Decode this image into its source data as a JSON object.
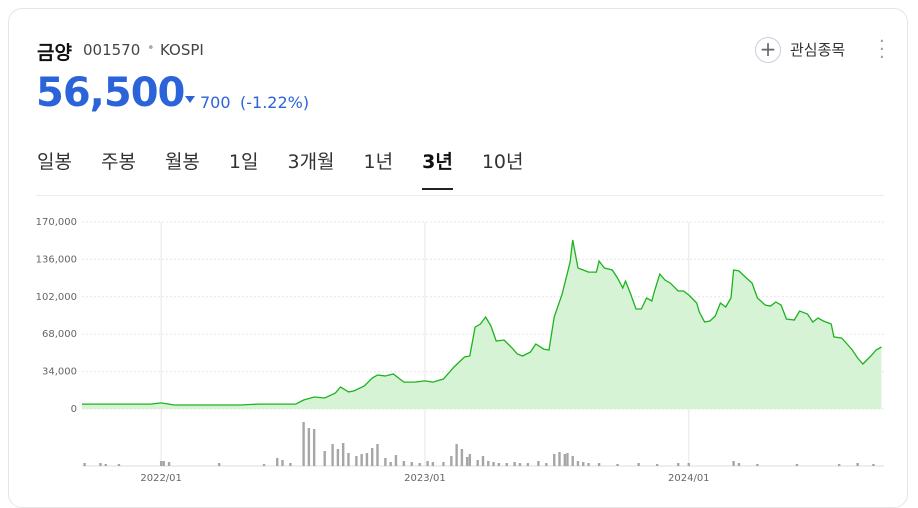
{
  "header": {
    "name": "금양",
    "code": "001570",
    "market": "KOSPI",
    "watch": "관심종목"
  },
  "price": {
    "value": "56,500",
    "change": "700",
    "change_pct": "(-1.22%)"
  },
  "tabs": {
    "items": [
      "일봉",
      "주봉",
      "월봉",
      "1일",
      "3개월",
      "1년",
      "3년",
      "10년"
    ],
    "active": 6
  },
  "chart_data": {
    "type": "area",
    "color": "#1db31d",
    "fill": "#d6f3d6",
    "x": [
      2021.7,
      2021.96,
      2022.0,
      2022.05,
      2022.15,
      2022.3,
      2022.37,
      2022.51,
      2022.54,
      2022.58,
      2022.62,
      2022.66,
      2022.68,
      2022.71,
      2022.73,
      2022.77,
      2022.8,
      2022.82,
      2022.85,
      2022.88,
      2022.92,
      2022.96,
      2023.0,
      2023.03,
      2023.07,
      2023.11,
      2023.15,
      2023.17,
      2023.19,
      2023.21,
      2023.23,
      2023.25,
      2023.27,
      2023.3,
      2023.33,
      2023.35,
      2023.37,
      2023.4,
      2023.42,
      2023.45,
      2023.47,
      2023.49,
      2023.52,
      2023.54,
      2023.55,
      2023.56,
      2023.58,
      2023.6,
      2023.62,
      2023.65,
      2023.66,
      2023.68,
      2023.71,
      2023.73,
      2023.75,
      2023.76,
      2023.78,
      2023.8,
      2023.82,
      2023.84,
      2023.86,
      2023.87,
      2023.89,
      2023.91,
      2023.93,
      2023.96,
      2023.98,
      2024.0,
      2024.03,
      2024.04,
      2024.06,
      2024.08,
      2024.1,
      2024.12,
      2024.14,
      2024.16,
      2024.17,
      2024.19,
      2024.21,
      2024.24,
      2024.26,
      2024.29,
      2024.31,
      2024.33,
      2024.35,
      2024.37,
      2024.4,
      2024.42,
      2024.45,
      2024.47,
      2024.49,
      2024.51,
      2024.54,
      2024.55,
      2024.58,
      2024.6,
      2024.62,
      2024.64,
      2024.66,
      2024.69,
      2024.71,
      2024.73
    ],
    "values": [
      4500,
      4500,
      5500,
      3600,
      3600,
      3600,
      4500,
      4500,
      8200,
      10900,
      10000,
      14500,
      20000,
      15500,
      16400,
      20900,
      28200,
      30900,
      30000,
      31800,
      24500,
      24500,
      25500,
      24500,
      27300,
      38200,
      47300,
      48200,
      74500,
      77300,
      83600,
      75500,
      61800,
      62700,
      55500,
      50000,
      48200,
      51800,
      59100,
      54500,
      53600,
      83600,
      104500,
      123600,
      133600,
      153600,
      128200,
      126400,
      124500,
      124500,
      134500,
      128200,
      126400,
      119100,
      110000,
      116400,
      104500,
      90900,
      90900,
      100900,
      98200,
      107300,
      122700,
      117300,
      114500,
      107300,
      107300,
      103600,
      96400,
      88200,
      79100,
      80000,
      84500,
      96400,
      92700,
      100900,
      126400,
      125500,
      120900,
      114500,
      100900,
      94500,
      93600,
      97300,
      94500,
      81800,
      80900,
      89100,
      86400,
      79100,
      82700,
      80000,
      77300,
      65500,
      64500,
      59100,
      53600,
      46400,
      40900,
      48200,
      53600,
      56400
    ],
    "xlim": [
      2021.7,
      2024.74
    ],
    "ylim": [
      0,
      170000
    ],
    "yticks": [
      0,
      {
        "value": 34000,
        "label": "34,000"
      },
      {
        "value": 68000,
        "label": "68,000"
      },
      {
        "value": 102000,
        "label": "102,000"
      },
      {
        "value": 136000,
        "label": "136,000"
      },
      {
        "value": 170000,
        "label": "170,000"
      }
    ],
    "xticks": [
      {
        "value": 2022,
        "label": "2022/01"
      },
      {
        "value": 2023,
        "label": "2023/01"
      },
      {
        "value": 2024,
        "label": "2024/01"
      }
    ],
    "grid": true,
    "volume": {
      "color": "#a6a6a6",
      "ylim": [
        0,
        46
      ],
      "x": [
        2021.71,
        2021.77,
        2021.79,
        2021.84,
        2022.0,
        2022.01,
        2022.03,
        2022.22,
        2022.39,
        2022.44,
        2022.46,
        2022.49,
        2022.54,
        2022.56,
        2022.58,
        2022.62,
        2022.65,
        2022.67,
        2022.69,
        2022.71,
        2022.74,
        2022.76,
        2022.78,
        2022.8,
        2022.82,
        2022.85,
        2022.87,
        2022.89,
        2022.92,
        2022.95,
        2022.98,
        2023.01,
        2023.03,
        2023.07,
        2023.1,
        2023.12,
        2023.14,
        2023.16,
        2023.17,
        2023.2,
        2023.22,
        2023.24,
        2023.26,
        2023.28,
        2023.31,
        2023.34,
        2023.36,
        2023.39,
        2023.43,
        2023.46,
        2023.49,
        2023.51,
        2023.53,
        2023.54,
        2023.56,
        2023.58,
        2023.6,
        2023.62,
        2023.66,
        2023.73,
        2023.81,
        2023.88,
        2023.96,
        2024.0,
        2024.17,
        2024.19,
        2024.26,
        2024.41,
        2024.57,
        2024.64,
        2024.7
      ],
      "values": [
        3,
        3,
        2,
        2,
        5,
        5,
        4,
        3,
        2,
        8,
        6,
        3,
        44,
        38,
        37,
        15,
        22,
        17,
        23,
        13,
        10,
        12,
        13,
        18,
        22,
        8,
        4,
        11,
        5,
        4,
        3,
        5,
        4,
        4,
        10,
        22,
        17,
        9,
        12,
        6,
        10,
        5,
        4,
        3,
        3,
        4,
        3,
        3,
        5,
        3,
        12,
        14,
        12,
        13,
        10,
        5,
        4,
        3,
        3,
        2,
        3,
        2,
        3,
        3,
        5,
        3,
        2,
        2,
        2,
        3,
        2
      ]
    }
  }
}
